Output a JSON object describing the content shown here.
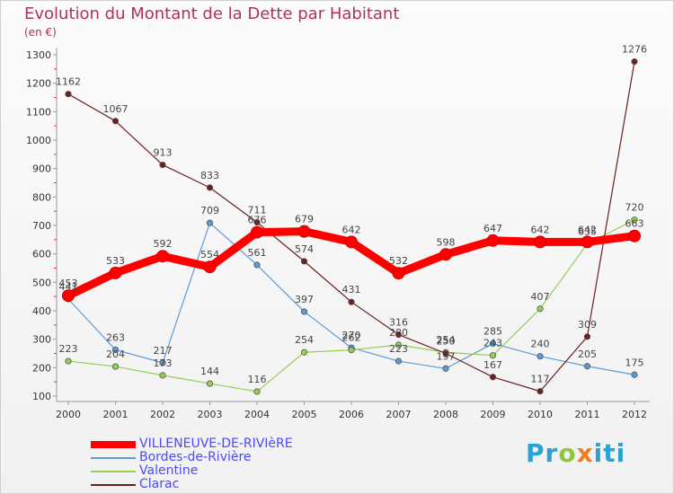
{
  "title": "Evolution du Montant de la Dette par Habitant",
  "subtitle": "(en €)",
  "logo": "Proxiti",
  "chart_data": {
    "type": "line",
    "categories": [
      "2000",
      "2001",
      "2002",
      "2003",
      "2004",
      "2005",
      "2006",
      "2007",
      "2008",
      "2009",
      "2010",
      "2011",
      "2012"
    ],
    "ylim": [
      100,
      1300
    ],
    "yticks": [
      100,
      200,
      300,
      400,
      500,
      600,
      700,
      800,
      900,
      1000,
      1100,
      1200,
      1300
    ],
    "grid": false,
    "legend_position": "bottom-left",
    "series": [
      {
        "name": "VILLENEUVE-DE-RIVIèRE",
        "color": "#ff0000",
        "values": [
          453,
          533,
          592,
          554,
          676,
          679,
          642,
          532,
          598,
          647,
          642,
          642,
          663
        ]
      },
      {
        "name": "Bordes-de-Rivière",
        "color": "#5b9bd5",
        "values": [
          441,
          263,
          217,
          709,
          561,
          397,
          270,
          223,
          197,
          285,
          240,
          205,
          175
        ]
      },
      {
        "name": "Valentine",
        "color": "#92d050",
        "values": [
          223,
          204,
          173,
          144,
          116,
          254,
          262,
          280,
          254,
          243,
          407,
          635,
          720
        ]
      },
      {
        "name": "Clarac",
        "color": "#6b1f1f",
        "values": [
          1162,
          1067,
          913,
          833,
          711,
          574,
          431,
          316,
          250,
          167,
          117,
          309,
          1276
        ]
      }
    ]
  }
}
